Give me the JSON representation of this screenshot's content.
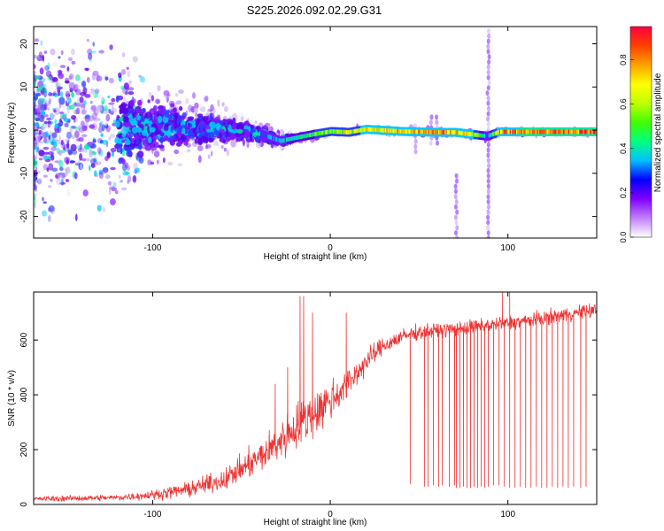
{
  "title": "S225.2026.092.02.29.G31",
  "chart_data": [
    {
      "type": "heatmap",
      "title": "S225.2026.092.02.29.G31",
      "xlabel": "Height of straight line (km)",
      "ylabel": "Frequency (Hz)",
      "xlim": [
        -167,
        150
      ],
      "ylim": [
        -25,
        24
      ],
      "xticks": [
        -100,
        0,
        100
      ],
      "xtick_labels": [
        "-100",
        "0",
        "100"
      ],
      "yticks": [
        -20,
        -10,
        0,
        10,
        20
      ],
      "ytick_labels": [
        "-20",
        "-10",
        "0",
        "10",
        "20"
      ],
      "colormap": [
        "#f0f0ff",
        "#c8b4f0",
        "#a064ff",
        "#7d14ff",
        "#5a00e6",
        "#2840ff",
        "#00c8ff",
        "#00e6a0",
        "#00ff3c",
        "#a0ff00",
        "#ffff00",
        "#ffb400",
        "#ff5000",
        "#ff0040"
      ],
      "colorbar": {
        "label": "Normalized spectral amplitude",
        "range": [
          0,
          0.95
        ],
        "ticks": [
          0,
          0.2,
          0.4,
          0.6,
          0.8
        ],
        "tick_labels": [
          "0.0",
          "0.2",
          "0.4",
          "0.6",
          "0.8"
        ],
        "colors": [
          "#ffffff",
          "#c080ff",
          "#8000ff",
          "#0000ff",
          "#00c0ff",
          "#00ff80",
          "#40ff00",
          "#c0ff00",
          "#ffff00",
          "#ffa000",
          "#ff4000",
          "#ff0040"
        ]
      },
      "carrier_profile": {
        "x": [
          -167,
          -120,
          -100,
          -80,
          -60,
          -40,
          -28,
          -20,
          -10,
          0,
          10,
          20,
          40,
          60,
          70,
          80,
          88,
          95,
          110,
          130,
          150
        ],
        "freq": [
          0.5,
          0.5,
          0.8,
          0.6,
          0.2,
          -0.8,
          -2.5,
          -1.8,
          -1.0,
          -0.3,
          -0.5,
          0.2,
          -0.3,
          -0.5,
          -0.5,
          -1.0,
          -1.4,
          -0.4,
          -0.4,
          -0.4,
          -0.4
        ],
        "amplitude": [
          0.18,
          0.22,
          0.28,
          0.32,
          0.35,
          0.4,
          0.45,
          0.55,
          0.62,
          0.7,
          0.75,
          0.78,
          0.82,
          0.9,
          0.85,
          0.78,
          0.4,
          0.88,
          0.92,
          0.93,
          0.93
        ],
        "spread_hz": [
          24,
          24,
          12,
          9,
          6,
          4,
          2.5,
          1.5,
          1.2,
          1.0,
          1.0,
          1.0,
          1.0,
          1.0,
          1.0,
          1.0,
          1.0,
          1.0,
          0.9,
          0.9,
          0.9
        ]
      },
      "vertical_streaks": [
        {
          "x": 71,
          "from": -25,
          "to": -10
        },
        {
          "x": 89,
          "from": -25,
          "to": 24
        },
        {
          "x": 48,
          "from": -5,
          "to": 2
        },
        {
          "x": 57,
          "from": -3,
          "to": 3
        },
        {
          "x": 60,
          "from": -3,
          "to": 3
        }
      ]
    },
    {
      "type": "line",
      "xlabel": "Height of straight line (km)",
      "ylabel": "SNR (10 * v/v)",
      "xlim": [
        -167,
        150
      ],
      "ylim": [
        0,
        775
      ],
      "xticks": [
        -100,
        0,
        100
      ],
      "xtick_labels": [
        "-100",
        "0",
        "100"
      ],
      "yticks": [
        0,
        200,
        400,
        600
      ],
      "ytick_labels": [
        "0",
        "200",
        "400",
        "600"
      ],
      "series": [
        {
          "name": "SNR",
          "color": "#ee3333",
          "trend_x": [
            -167,
            -120,
            -100,
            -80,
            -60,
            -50,
            -40,
            -30,
            -20,
            -10,
            0,
            10,
            20,
            30,
            40,
            50,
            70,
            90,
            110,
            130,
            150
          ],
          "trend_y": [
            20,
            25,
            35,
            55,
            90,
            130,
            170,
            220,
            280,
            330,
            380,
            440,
            520,
            580,
            610,
            630,
            640,
            655,
            670,
            690,
            710
          ],
          "noise": [
            10,
            12,
            18,
            28,
            40,
            50,
            60,
            75,
            90,
            95,
            80,
            60,
            45,
            35,
            30,
            28,
            28,
            28,
            28,
            28,
            28
          ],
          "dropout_x": [
            45,
            53,
            55,
            58,
            61,
            63,
            67,
            70,
            71,
            73,
            75,
            77,
            79,
            81,
            83,
            85,
            87,
            89,
            92,
            95,
            98,
            101,
            104,
            107,
            110,
            113,
            116,
            119,
            122,
            125,
            128,
            131,
            134,
            137,
            141,
            144
          ],
          "dropout_y": [
            75,
            65,
            65,
            70,
            65,
            70,
            65,
            70,
            60,
            60,
            65,
            60,
            60,
            65,
            60,
            65,
            60,
            65,
            70,
            70,
            65,
            60,
            60,
            65,
            60,
            60,
            65,
            60,
            60,
            65,
            60,
            65,
            60,
            65,
            60,
            65
          ],
          "spikes": [
            [
              -17,
              760
            ],
            [
              -15,
              760
            ],
            [
              -10,
              700
            ],
            [
              9,
              700
            ],
            [
              97,
              790
            ],
            [
              101,
              790
            ],
            [
              -31,
              440
            ],
            [
              -24,
              500
            ]
          ]
        }
      ]
    }
  ]
}
